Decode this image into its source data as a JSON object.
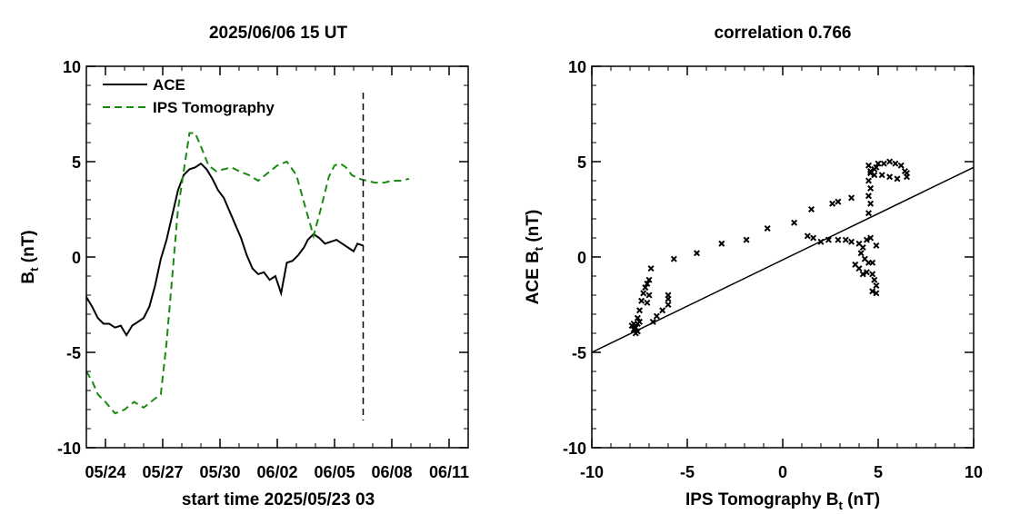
{
  "chart_data": [
    {
      "type": "line",
      "title": "2025/06/06 15 UT",
      "xlabel": "start time 2025/05/23 03",
      "ylabel": "B",
      "ylabel_sub": "t",
      "ylabel_unit": " (nT)",
      "xlim": [
        0,
        20
      ],
      "ylim": [
        -10,
        10
      ],
      "x_ticks": [
        {
          "x": 1,
          "label": "05/24"
        },
        {
          "x": 4,
          "label": "05/27"
        },
        {
          "x": 7,
          "label": "05/30"
        },
        {
          "x": 10,
          "label": "06/02"
        },
        {
          "x": 13,
          "label": "06/05"
        },
        {
          "x": 16,
          "label": "06/08"
        },
        {
          "x": 19,
          "label": "06/11"
        }
      ],
      "y_ticks": [
        -10,
        -5,
        0,
        5,
        10
      ],
      "y_tick_labels": [
        "-10",
        "-5",
        "0",
        "5",
        "10"
      ],
      "now_marker_x": 14.5,
      "series": [
        {
          "name": "ACE",
          "color": "#000000",
          "dash": "solid",
          "x": [
            0.0,
            0.3,
            0.6,
            0.9,
            1.2,
            1.5,
            1.8,
            2.1,
            2.4,
            2.7,
            3.0,
            3.3,
            3.6,
            3.9,
            4.2,
            4.5,
            4.8,
            5.1,
            5.4,
            5.7,
            6.0,
            6.3,
            6.6,
            6.9,
            7.2,
            7.5,
            7.8,
            8.1,
            8.4,
            8.7,
            9.0,
            9.3,
            9.6,
            9.9,
            10.2,
            10.5,
            10.8,
            11.1,
            11.4,
            11.6,
            11.9,
            12.2,
            12.5,
            12.8,
            13.1,
            13.4,
            13.7,
            14.0,
            14.2,
            14.5
          ],
          "values": [
            -2.1,
            -2.6,
            -3.2,
            -3.5,
            -3.5,
            -3.7,
            -3.6,
            -4.1,
            -3.6,
            -3.4,
            -3.2,
            -2.6,
            -1.5,
            -0.1,
            0.9,
            2.2,
            3.5,
            4.3,
            4.6,
            4.7,
            4.9,
            4.6,
            4.1,
            3.5,
            3.1,
            2.4,
            1.7,
            1.0,
            0.1,
            -0.6,
            -0.9,
            -0.8,
            -1.2,
            -1.0,
            -1.9,
            -0.3,
            -0.2,
            0.1,
            0.5,
            0.9,
            1.2,
            1.0,
            0.7,
            0.8,
            0.9,
            0.7,
            0.5,
            0.3,
            0.7,
            0.6
          ]
        },
        {
          "name": "IPS Tomography",
          "color": "#198a10",
          "dash": "dashed",
          "x": [
            0.0,
            0.3,
            0.6,
            1.0,
            1.5,
            2.0,
            2.5,
            3.0,
            3.5,
            3.9,
            4.2,
            4.5,
            4.8,
            5.1,
            5.4,
            5.7,
            6.0,
            6.4,
            6.8,
            7.2,
            7.6,
            8.0,
            8.5,
            9.0,
            9.5,
            10.0,
            10.5,
            11.0,
            11.5,
            11.9,
            12.3,
            12.7,
            13.0,
            13.3,
            13.6,
            13.9,
            14.3,
            14.7,
            15.1,
            15.6,
            16.0,
            16.5,
            16.9
          ],
          "values": [
            -6.0,
            -6.5,
            -7.2,
            -7.6,
            -8.2,
            -8.0,
            -7.6,
            -7.9,
            -7.5,
            -7.2,
            -4.5,
            -1.0,
            2.5,
            4.5,
            6.5,
            6.5,
            5.8,
            4.8,
            4.5,
            4.6,
            4.7,
            4.5,
            4.3,
            4.0,
            4.4,
            4.8,
            5.0,
            4.3,
            2.5,
            1.1,
            2.6,
            4.2,
            4.8,
            4.9,
            4.7,
            4.3,
            4.1,
            4.0,
            3.9,
            3.9,
            4.0,
            4.0,
            4.1
          ]
        }
      ]
    },
    {
      "type": "scatter",
      "title": "correlation 0.766",
      "xlabel": "IPS Tomography B",
      "xlabel_sub": "t",
      "xlabel_unit": " (nT)",
      "ylabel": "ACE B",
      "ylabel_sub": "t",
      "ylabel_unit": " (nT)",
      "xlim": [
        -10,
        10
      ],
      "ylim": [
        -10,
        10
      ],
      "x_ticks": [
        -10,
        -5,
        0,
        5,
        10
      ],
      "x_tick_labels": [
        "-10",
        "-5",
        "0",
        "5",
        "10"
      ],
      "y_ticks": [
        -10,
        -5,
        0,
        5,
        10
      ],
      "y_tick_labels": [
        "-10",
        "-5",
        "0",
        "5",
        "10"
      ],
      "marker": "x",
      "fit_line": {
        "x": [
          -10,
          10
        ],
        "y": [
          -5.0,
          4.7
        ]
      },
      "points": [
        [
          -7.9,
          -3.6
        ],
        [
          -7.8,
          -3.8
        ],
        [
          -7.7,
          -4.0
        ],
        [
          -7.6,
          -3.5
        ],
        [
          -7.7,
          -3.7
        ],
        [
          -7.5,
          -3.4
        ],
        [
          -7.8,
          -3.5
        ],
        [
          -7.6,
          -3.9
        ],
        [
          -7.6,
          -3.2
        ],
        [
          -7.5,
          -2.8
        ],
        [
          -7.4,
          -2.3
        ],
        [
          -7.3,
          -1.9
        ],
        [
          -7.2,
          -1.6
        ],
        [
          -7.1,
          -1.4
        ],
        [
          -7.0,
          -1.2
        ],
        [
          -6.9,
          -0.6
        ],
        [
          -7.1,
          -2.4
        ],
        [
          -7.0,
          -2.0
        ],
        [
          -6.8,
          -3.4
        ],
        [
          -6.6,
          -3.1
        ],
        [
          -6.3,
          -2.8
        ],
        [
          -6.0,
          -2.5
        ],
        [
          -6.0,
          -2.2
        ],
        [
          -6.0,
          -2.0
        ],
        [
          -5.7,
          -0.1
        ],
        [
          -4.5,
          0.2
        ],
        [
          -3.2,
          0.7
        ],
        [
          -1.9,
          0.9
        ],
        [
          -0.8,
          1.5
        ],
        [
          0.6,
          1.8
        ],
        [
          1.5,
          2.5
        ],
        [
          2.6,
          2.8
        ],
        [
          2.9,
          2.9
        ],
        [
          3.6,
          3.1
        ],
        [
          1.3,
          1.1
        ],
        [
          1.6,
          1.0
        ],
        [
          2.0,
          0.8
        ],
        [
          2.4,
          0.9
        ],
        [
          2.9,
          0.9
        ],
        [
          3.3,
          0.9
        ],
        [
          3.6,
          0.8
        ],
        [
          4.0,
          0.7
        ],
        [
          4.2,
          0.5
        ],
        [
          4.4,
          0.9
        ],
        [
          4.6,
          1.0
        ],
        [
          4.9,
          0.6
        ],
        [
          4.1,
          0.2
        ],
        [
          4.3,
          -0.1
        ],
        [
          4.5,
          -0.3
        ],
        [
          4.7,
          -0.3
        ],
        [
          4.0,
          -0.6
        ],
        [
          4.2,
          -0.9
        ],
        [
          4.4,
          -0.8
        ],
        [
          4.7,
          -0.9
        ],
        [
          4.8,
          -1.2
        ],
        [
          4.9,
          -1.5
        ],
        [
          4.7,
          -1.8
        ],
        [
          4.9,
          -1.9
        ],
        [
          3.8,
          -0.4
        ],
        [
          4.5,
          2.3
        ],
        [
          4.6,
          2.8
        ],
        [
          4.5,
          3.2
        ],
        [
          4.6,
          3.6
        ],
        [
          4.5,
          4.0
        ],
        [
          4.6,
          4.4
        ],
        [
          4.8,
          4.6
        ],
        [
          4.9,
          4.7
        ],
        [
          4.5,
          4.8
        ],
        [
          4.6,
          4.5
        ],
        [
          4.8,
          4.3
        ],
        [
          5.0,
          4.9
        ],
        [
          5.3,
          4.9
        ],
        [
          5.6,
          5.0
        ],
        [
          5.9,
          4.9
        ],
        [
          6.2,
          4.8
        ],
        [
          6.4,
          4.5
        ],
        [
          6.5,
          4.2
        ],
        [
          6.5,
          4.4
        ],
        [
          6.0,
          4.1
        ],
        [
          5.6,
          4.2
        ],
        [
          5.2,
          4.3
        ]
      ]
    }
  ]
}
